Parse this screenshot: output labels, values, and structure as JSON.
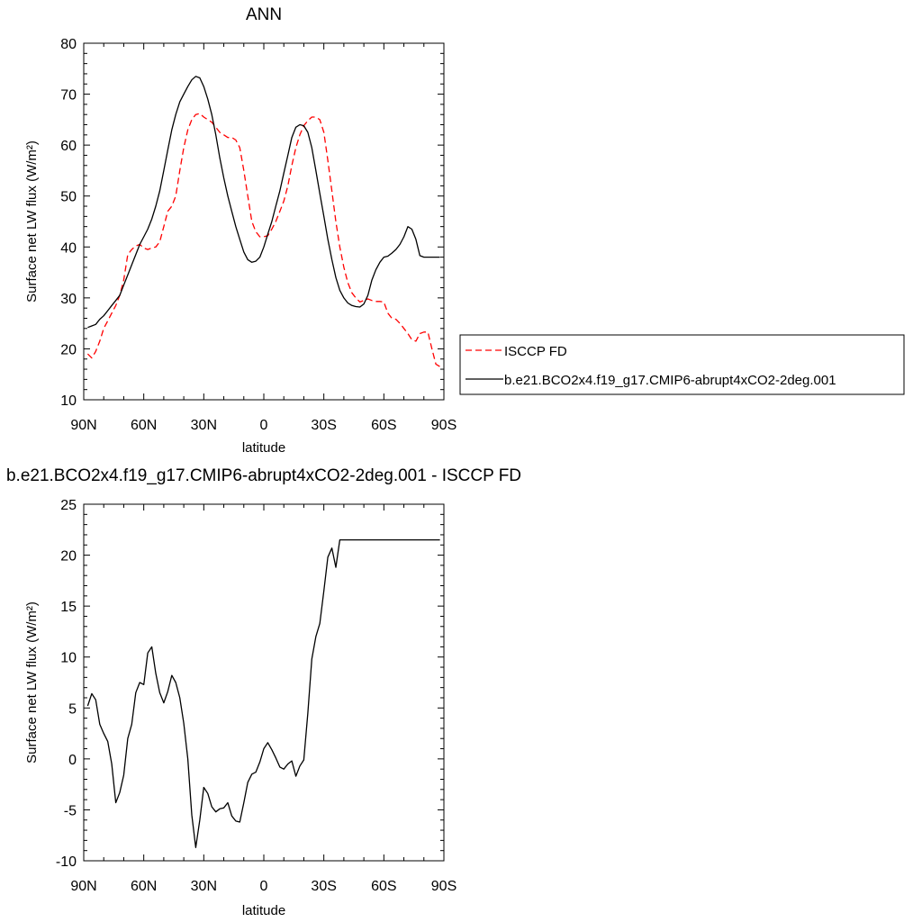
{
  "chart_data": [
    {
      "type": "line",
      "title": "ANN",
      "xlabel": "latitude",
      "ylabel": "Surface net LW flux (W/m²)",
      "ylim": [
        10,
        80
      ],
      "yticks": [
        "10",
        "20",
        "30",
        "40",
        "50",
        "60",
        "70",
        "80"
      ],
      "xlim": [
        90,
        -90
      ],
      "xticks": [
        "90N",
        "60N",
        "30N",
        "0",
        "30S",
        "60S",
        "90S"
      ],
      "legend_position": "right",
      "series": [
        {
          "name": "ISCCP FD",
          "color": "#ff0000",
          "dash": "dashed",
          "x": [
            88,
            86,
            84,
            82,
            80,
            78,
            76,
            74,
            72,
            70,
            68,
            66,
            64,
            62,
            60,
            58,
            56,
            54,
            52,
            50,
            48,
            46,
            44,
            42,
            40,
            38,
            36,
            34,
            32,
            30,
            28,
            26,
            24,
            22,
            20,
            18,
            16,
            14,
            12,
            10,
            8,
            6,
            4,
            2,
            0,
            -2,
            -4,
            -6,
            -8,
            -10,
            -12,
            -14,
            -16,
            -18,
            -20,
            -22,
            -24,
            -26,
            -28,
            -30,
            -32,
            -34,
            -36,
            -38,
            -40,
            -42,
            -44,
            -46,
            -48,
            -50,
            -52,
            -54,
            -56,
            -58,
            -60,
            -62,
            -64,
            -66,
            -68,
            -70,
            -72,
            -74,
            -76,
            -78,
            -80,
            -82,
            -84,
            -86,
            -88
          ],
          "values": [
            19.0,
            18.2,
            19.5,
            21.5,
            24.0,
            25.5,
            27.0,
            28.5,
            30.5,
            33.5,
            38.5,
            39.5,
            40.2,
            40.5,
            39.8,
            39.5,
            39.8,
            40.0,
            41.0,
            44.0,
            47.0,
            48.0,
            50.0,
            55.0,
            59.5,
            63.0,
            65.0,
            66.0,
            66.2,
            65.5,
            65.0,
            64.5,
            63.5,
            62.5,
            62.0,
            61.5,
            61.5,
            61.0,
            59.5,
            55.0,
            50.0,
            45.0,
            43.0,
            42.0,
            42.0,
            42.2,
            43.5,
            45.0,
            47.0,
            49.0,
            52.0,
            56.0,
            59.5,
            62.0,
            63.8,
            64.8,
            65.5,
            65.5,
            65.0,
            62.5,
            57.0,
            51.0,
            45.0,
            40.0,
            36.0,
            33.0,
            31.0,
            30.0,
            29.2,
            29.5,
            29.8,
            29.5,
            29.3,
            29.3,
            29.2,
            27.0,
            26.0,
            25.8,
            25.0,
            24.0,
            23.0,
            21.8,
            21.5,
            23.0,
            23.3,
            23.3,
            20.0,
            17.0,
            16.5
          ]
        },
        {
          "name": "b.e21.BCO2x4.f19_g17.CMIP6-abrupt4xCO2-2deg.001",
          "color": "#000000",
          "dash": "solid",
          "x": [
            88,
            86,
            84,
            82,
            80,
            78,
            76,
            74,
            72,
            70,
            68,
            66,
            64,
            62,
            60,
            58,
            56,
            54,
            52,
            50,
            48,
            46,
            44,
            42,
            40,
            38,
            36,
            34,
            32,
            30,
            28,
            26,
            24,
            22,
            20,
            18,
            16,
            14,
            12,
            10,
            8,
            6,
            4,
            2,
            0,
            -2,
            -4,
            -6,
            -8,
            -10,
            -12,
            -14,
            -16,
            -18,
            -20,
            -22,
            -24,
            -26,
            -28,
            -30,
            -32,
            -34,
            -36,
            -38,
            -40,
            -42,
            -44,
            -46,
            -48,
            -50,
            -52,
            -54,
            -56,
            -58,
            -60,
            -62,
            -64,
            -66,
            -68,
            -70,
            -72,
            -74,
            -76,
            -78,
            -80,
            -82,
            -84,
            -86,
            -88
          ],
          "values": [
            24.2,
            24.5,
            24.8,
            25.8,
            26.5,
            27.5,
            28.5,
            29.5,
            30.5,
            32.5,
            34.5,
            36.5,
            38.5,
            40.5,
            42.0,
            43.5,
            45.5,
            48.0,
            51.0,
            55.0,
            59.0,
            63.0,
            66.0,
            68.5,
            70.0,
            71.5,
            72.8,
            73.5,
            73.2,
            71.5,
            69.0,
            66.0,
            62.0,
            57.5,
            53.5,
            50.0,
            47.0,
            44.0,
            41.5,
            39.0,
            37.5,
            37.0,
            37.2,
            38.0,
            40.0,
            42.5,
            45.0,
            48.0,
            51.0,
            54.5,
            58.0,
            61.5,
            63.5,
            64.0,
            63.8,
            62.5,
            59.5,
            55.0,
            50.5,
            46.0,
            41.5,
            37.5,
            34.0,
            31.5,
            30.0,
            29.0,
            28.5,
            28.3,
            28.2,
            28.8,
            30.5,
            33.5,
            35.5,
            37.0,
            38.0,
            38.2,
            38.8,
            39.5,
            40.5,
            42.0,
            44.0,
            43.5,
            41.5,
            38.3,
            38.0,
            38.0,
            38.0,
            38.0,
            38.0
          ]
        }
      ]
    },
    {
      "type": "line",
      "title": "b.e21.BCO2x4.f19_g17.CMIP6-abrupt4xCO2-2deg.001 - ISCCP FD",
      "xlabel": "latitude",
      "ylabel": "Surface net LW flux (W/m²)",
      "ylim": [
        -10,
        25
      ],
      "yticks": [
        "-10",
        "-5",
        "0",
        "5",
        "10",
        "15",
        "20",
        "25"
      ],
      "xlim": [
        90,
        -90
      ],
      "xticks": [
        "90N",
        "60N",
        "30N",
        "0",
        "30S",
        "60S",
        "90S"
      ],
      "series": [
        {
          "color": "#000000",
          "dash": "solid",
          "x": [
            88,
            86,
            84,
            82,
            80,
            78,
            76,
            74,
            72,
            70,
            68,
            66,
            64,
            62,
            60,
            58,
            56,
            54,
            52,
            50,
            48,
            46,
            44,
            42,
            40,
            38,
            36,
            34,
            32,
            30,
            28,
            26,
            24,
            22,
            20,
            18,
            16,
            14,
            12,
            10,
            8,
            6,
            4,
            2,
            0,
            -2,
            -4,
            -6,
            -8,
            -10,
            -12,
            -14,
            -16,
            -18,
            -20,
            -22,
            -24,
            -26,
            -28,
            -30,
            -32,
            -34,
            -36,
            -38,
            -40,
            -42,
            -44,
            -46,
            -48,
            -50,
            -52,
            -54,
            -56,
            -58,
            -60,
            -62,
            -64,
            -66,
            -68,
            -70,
            -72,
            -74,
            -76,
            -78,
            -80,
            -82,
            -84,
            -86,
            -88
          ],
          "values": [
            5.2,
            6.4,
            5.8,
            3.4,
            2.5,
            1.7,
            -0.5,
            -4.3,
            -3.3,
            -1.6,
            2.0,
            3.4,
            6.5,
            7.5,
            7.3,
            10.4,
            11.0,
            8.4,
            6.5,
            5.5,
            6.6,
            8.2,
            7.5,
            6.0,
            3.5,
            0.0,
            -5.5,
            -8.7,
            -6.0,
            -2.8,
            -3.4,
            -4.7,
            -5.2,
            -4.9,
            -4.8,
            -4.3,
            -5.6,
            -6.1,
            -6.2,
            -4.3,
            -2.3,
            -1.5,
            -1.3,
            -0.3,
            1.0,
            1.6,
            0.9,
            0.1,
            -0.8,
            -1.0,
            -0.5,
            -0.2,
            -1.7,
            -0.7,
            -0.1,
            4.5,
            9.8,
            12.0,
            13.3,
            16.5,
            19.8,
            20.7,
            18.8,
            21.5,
            21.5,
            21.5,
            21.5,
            21.5,
            21.5,
            21.5,
            21.5,
            21.5,
            21.5,
            21.5,
            21.5,
            21.5,
            21.5,
            21.5,
            21.5,
            21.5,
            21.5,
            21.5,
            21.5,
            21.5,
            21.5,
            21.5,
            21.5,
            21.5,
            21.5
          ]
        }
      ]
    }
  ]
}
